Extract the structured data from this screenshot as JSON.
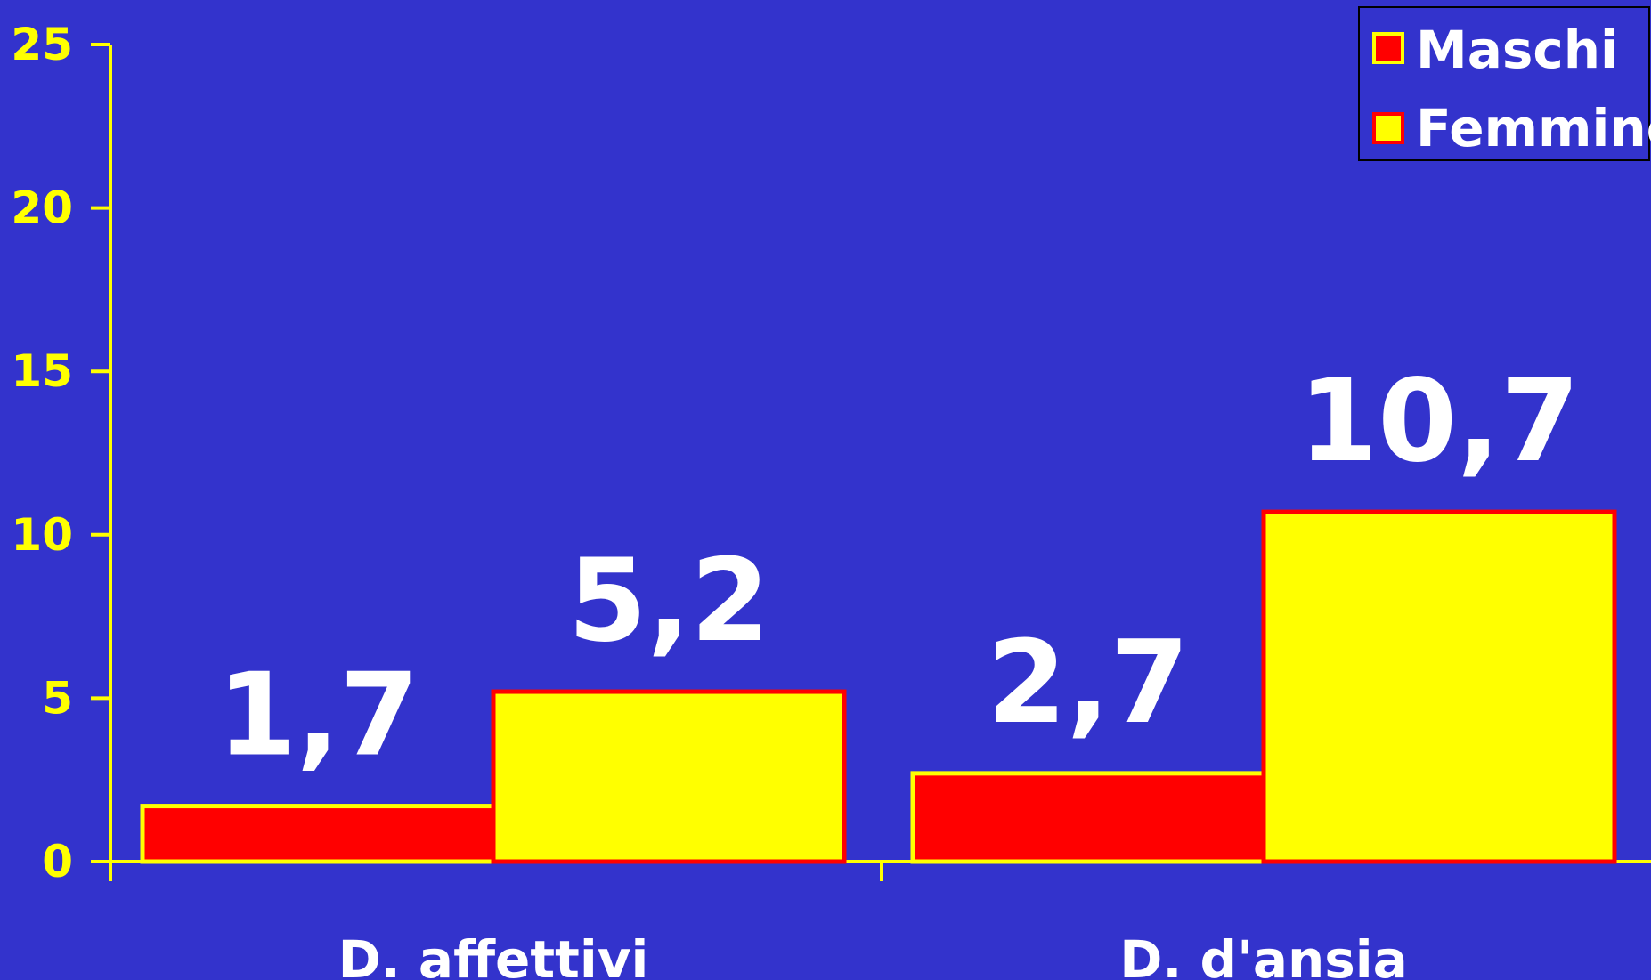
{
  "chart_data": {
    "type": "bar",
    "title": "",
    "xlabel": "",
    "ylabel": "",
    "categories": [
      "D. affettivi",
      "D. d'ansia"
    ],
    "series": [
      {
        "name": "Maschi",
        "values": [
          1.7,
          2.7
        ],
        "labels": [
          "1,7",
          "2,7"
        ],
        "color": "#FF0000",
        "border": "#FFFF00"
      },
      {
        "name": "Femmine",
        "values": [
          5.2,
          10.7
        ],
        "labels": [
          "5,2",
          "10,7"
        ],
        "color": "#FFFF00",
        "border": "#FF0000"
      }
    ],
    "ylim": [
      0,
      25
    ],
    "yticks": [
      "0",
      "5",
      "10",
      "15",
      "20",
      "25"
    ],
    "grid": false,
    "legend_position": "top-right",
    "colors": {
      "background": "#3333CC",
      "axis": "#FFFF00",
      "data_label": "#FFFFFF"
    }
  }
}
